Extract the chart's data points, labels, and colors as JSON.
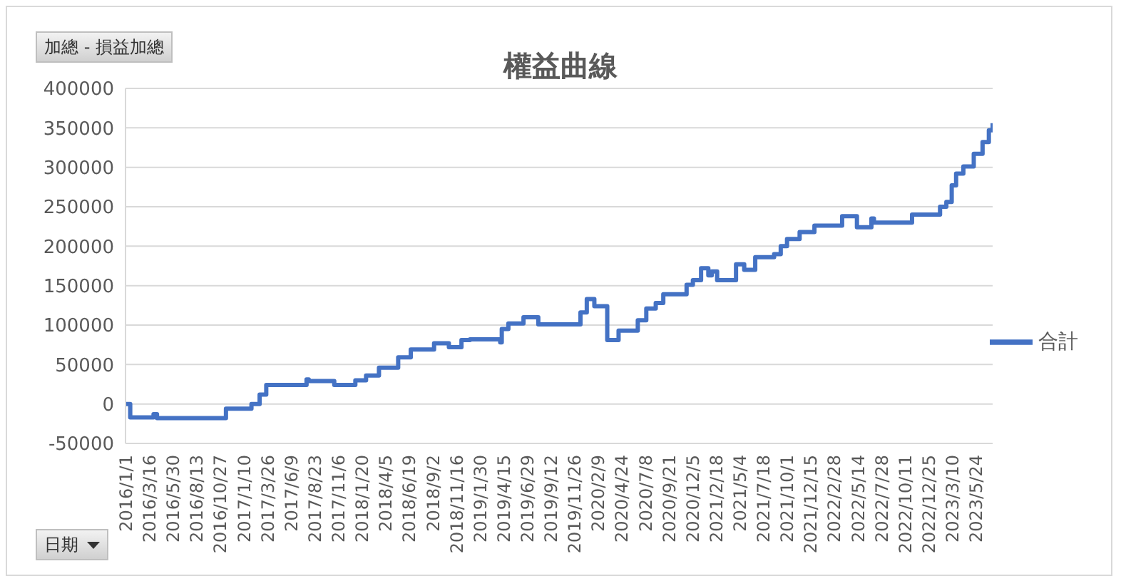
{
  "chart_data": {
    "type": "step",
    "title": "權益曲線",
    "annotations": [
      "加總 - 損益加總",
      "日期"
    ],
    "x": [
      "2016-01-01",
      "2016-01-16",
      "2016-03-30",
      "2016-04-10",
      "2016-11-15",
      "2017-02-04",
      "2017-03-02",
      "2017-03-23",
      "2017-07-29",
      "2017-08-05",
      "2017-10-25",
      "2017-12-31",
      "2018-02-03",
      "2018-03-16",
      "2018-05-16",
      "2018-06-25",
      "2018-09-07",
      "2018-10-24",
      "2018-12-03",
      "2018-12-30",
      "2019-04-05",
      "2019-04-10",
      "2019-05-01",
      "2019-06-18",
      "2019-08-04",
      "2019-12-16",
      "2020-01-05",
      "2020-01-29",
      "2020-03-10",
      "2020-04-15",
      "2020-06-15",
      "2020-07-12",
      "2020-08-11",
      "2020-09-04",
      "2020-11-17",
      "2020-12-07",
      "2021-01-02",
      "2021-01-25",
      "2021-02-05",
      "2021-02-22",
      "2021-04-23",
      "2021-05-19",
      "2021-06-23",
      "2021-08-22",
      "2021-09-12",
      "2021-10-02",
      "2021-11-11",
      "2021-12-28",
      "2022-03-26",
      "2022-05-12",
      "2022-06-27",
      "2022-07-05",
      "2022-11-03",
      "2023-01-31",
      "2023-02-20",
      "2023-03-09",
      "2023-03-23",
      "2023-04-15",
      "2023-05-18",
      "2023-06-15",
      "2023-07-05",
      "2023-07-17"
    ],
    "series": [
      {
        "name": "合計",
        "color": "#4472c4",
        "values": [
          0,
          -17000,
          -13000,
          -18000,
          -6000,
          0,
          12000,
          24000,
          31000,
          29000,
          24000,
          30000,
          36000,
          46000,
          59000,
          69000,
          77000,
          72000,
          81000,
          82000,
          78000,
          95000,
          102000,
          110000,
          101000,
          116000,
          133000,
          124000,
          81000,
          93000,
          106000,
          121000,
          128000,
          139000,
          151000,
          157000,
          172000,
          163000,
          168000,
          157000,
          177000,
          170000,
          186000,
          190000,
          200000,
          209000,
          218000,
          226000,
          238000,
          224000,
          235000,
          230000,
          240000,
          250000,
          256000,
          277000,
          292000,
          301000,
          317000,
          332000,
          347000,
          356000
        ]
      }
    ],
    "xlim": [
      "2016-01-01",
      "2023-07-17"
    ],
    "xticks": [
      {
        "value": "2016-01-01",
        "label": "2016/1/1"
      },
      {
        "value": "2016-03-16",
        "label": "2016/3/16"
      },
      {
        "value": "2016-05-30",
        "label": "2016/5/30"
      },
      {
        "value": "2016-08-13",
        "label": "2016/8/13"
      },
      {
        "value": "2016-10-27",
        "label": "2016/10/27"
      },
      {
        "value": "2017-01-10",
        "label": "2017/1/10"
      },
      {
        "value": "2017-03-26",
        "label": "2017/3/26"
      },
      {
        "value": "2017-06-09",
        "label": "2017/6/9"
      },
      {
        "value": "2017-08-23",
        "label": "2017/8/23"
      },
      {
        "value": "2017-11-06",
        "label": "2017/11/6"
      },
      {
        "value": "2018-01-20",
        "label": "2018/1/20"
      },
      {
        "value": "2018-04-05",
        "label": "2018/4/5"
      },
      {
        "value": "2018-06-19",
        "label": "2018/6/19"
      },
      {
        "value": "2018-09-02",
        "label": "2018/9/2"
      },
      {
        "value": "2018-11-16",
        "label": "2018/11/16"
      },
      {
        "value": "2019-01-30",
        "label": "2019/1/30"
      },
      {
        "value": "2019-04-15",
        "label": "2019/4/15"
      },
      {
        "value": "2019-06-29",
        "label": "2019/6/29"
      },
      {
        "value": "2019-09-12",
        "label": "2019/9/12"
      },
      {
        "value": "2019-11-26",
        "label": "2019/11/26"
      },
      {
        "value": "2020-02-09",
        "label": "2020/2/9"
      },
      {
        "value": "2020-04-24",
        "label": "2020/4/24"
      },
      {
        "value": "2020-07-08",
        "label": "2020/7/8"
      },
      {
        "value": "2020-09-21",
        "label": "2020/9/21"
      },
      {
        "value": "2020-12-05",
        "label": "2020/12/5"
      },
      {
        "value": "2021-02-18",
        "label": "2021/2/18"
      },
      {
        "value": "2021-05-04",
        "label": "2021/5/4"
      },
      {
        "value": "2021-07-18",
        "label": "2021/7/18"
      },
      {
        "value": "2021-10-01",
        "label": "2021/10/1"
      },
      {
        "value": "2021-12-15",
        "label": "2021/12/15"
      },
      {
        "value": "2022-02-28",
        "label": "2022/2/28"
      },
      {
        "value": "2022-05-14",
        "label": "2022/5/14"
      },
      {
        "value": "2022-07-28",
        "label": "2022/7/28"
      },
      {
        "value": "2022-10-11",
        "label": "2022/10/11"
      },
      {
        "value": "2022-12-25",
        "label": "2022/12/25"
      },
      {
        "value": "2023-03-10",
        "label": "2023/3/10"
      },
      {
        "value": "2023-05-24",
        "label": "2023/5/24"
      }
    ],
    "ylim": [
      -50000,
      400000
    ],
    "yticks": [
      -50000,
      0,
      50000,
      100000,
      150000,
      200000,
      250000,
      300000,
      350000,
      400000
    ],
    "grid": "y",
    "legend": "right"
  }
}
